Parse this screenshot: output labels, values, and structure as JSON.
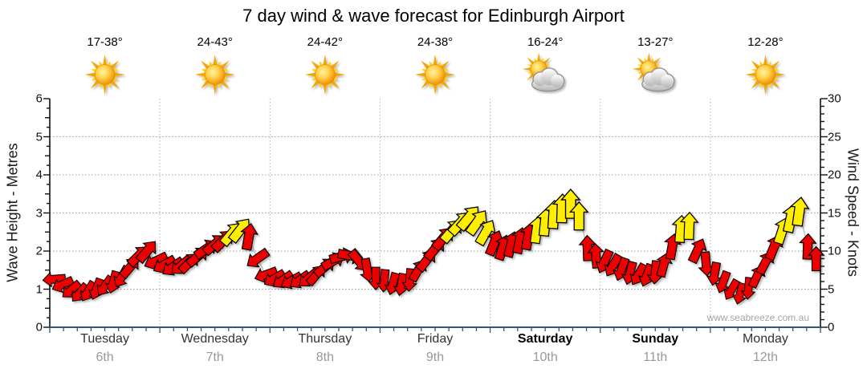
{
  "title": "7 day wind & wave forecast for Edinburgh Airport",
  "watermark": "www.seabreeze.com.au",
  "axes": {
    "left_label": "Wave Height - Metres",
    "right_label": "Wind Speed - Knots",
    "left_ticks": [
      0,
      1,
      2,
      3,
      4,
      5,
      6
    ],
    "right_ticks": [
      0,
      5,
      10,
      15,
      20,
      25,
      30
    ]
  },
  "days": [
    {
      "name": "Tuesday",
      "date": "6th",
      "temp": "17-38°",
      "icon": "sun",
      "bold": false
    },
    {
      "name": "Wednesday",
      "date": "7th",
      "temp": "24-43°",
      "icon": "sun",
      "bold": false
    },
    {
      "name": "Thursday",
      "date": "8th",
      "temp": "24-42°",
      "icon": "sun",
      "bold": false
    },
    {
      "name": "Friday",
      "date": "9th",
      "temp": "24-38°",
      "icon": "sun",
      "bold": false
    },
    {
      "name": "Saturday",
      "date": "10th",
      "temp": "16-24°",
      "icon": "sun-cloud",
      "bold": true
    },
    {
      "name": "Sunday",
      "date": "11th",
      "temp": "13-27°",
      "icon": "sun-cloud",
      "bold": true
    },
    {
      "name": "Monday",
      "date": "12th",
      "temp": "12-28°",
      "icon": "sun",
      "bold": false
    }
  ],
  "chart_data": {
    "type": "wind-arrow-series",
    "title": "7 day wind & wave forecast for Edinburgh Airport",
    "x": "time, 7 days (Tue 6th - Mon 12th), 13 samples per day",
    "y_left_axis": {
      "label": "Wave Height - Metres",
      "range": [
        0,
        6
      ],
      "major_step": 1
    },
    "y_right_axis": {
      "label": "Wind Speed - Knots",
      "range": [
        0,
        30
      ],
      "major_step": 5
    },
    "grid": {
      "horizontal_dotted_at_metres": [
        1,
        2,
        3,
        4,
        5
      ],
      "vertical_dotted_at_day_boundaries": true
    },
    "colors": {
      "low_wind_arrow": "#ec0000",
      "high_wind_arrow": "#ffee00",
      "arrow_outline": "#000000",
      "high_wind_threshold_knots": 12,
      "bottom_axis": "#30587e"
    },
    "arrow_semantics": "each arrow: [wind speed in knots (right axis), direction wind blows toward in degrees (0=N/up, 90=E/right)]",
    "arrows": [
      [
        6.3,
        265
      ],
      [
        5.6,
        245
      ],
      [
        4.9,
        230
      ],
      [
        4.5,
        220
      ],
      [
        4.7,
        210
      ],
      [
        5.0,
        200
      ],
      [
        5.4,
        215
      ],
      [
        5.9,
        195
      ],
      [
        6.6,
        210
      ],
      [
        7.9,
        40
      ],
      [
        9.4,
        45
      ],
      [
        10.0,
        40
      ],
      [
        8.7,
        245
      ],
      [
        8.2,
        240
      ],
      [
        7.9,
        235
      ],
      [
        8.1,
        230
      ],
      [
        8.5,
        45
      ],
      [
        9.3,
        50
      ],
      [
        10.3,
        55
      ],
      [
        10.9,
        50
      ],
      [
        11.4,
        45
      ],
      [
        12.3,
        40
      ],
      [
        12.8,
        38
      ],
      [
        11.9,
        10
      ],
      [
        9.0,
        235
      ],
      [
        6.9,
        250
      ],
      [
        6.4,
        240
      ],
      [
        6.2,
        235
      ],
      [
        6.1,
        240
      ],
      [
        6.2,
        235
      ],
      [
        6.4,
        230
      ],
      [
        6.9,
        40
      ],
      [
        7.9,
        50
      ],
      [
        8.7,
        60
      ],
      [
        9.3,
        75
      ],
      [
        9.4,
        100
      ],
      [
        8.7,
        140
      ],
      [
        7.5,
        170
      ],
      [
        6.4,
        180
      ],
      [
        6.1,
        185
      ],
      [
        5.7,
        195
      ],
      [
        5.6,
        190
      ],
      [
        6.2,
        185
      ],
      [
        7.5,
        30
      ],
      [
        8.8,
        38
      ],
      [
        10.3,
        40
      ],
      [
        11.7,
        40
      ],
      [
        12.7,
        40
      ],
      [
        13.7,
        42
      ],
      [
        14.4,
        40
      ],
      [
        13.8,
        35
      ],
      [
        12.5,
        30
      ],
      [
        11.1,
        22
      ],
      [
        10.5,
        18
      ],
      [
        10.9,
        15
      ],
      [
        11.4,
        12
      ],
      [
        11.9,
        10
      ],
      [
        12.8,
        8
      ],
      [
        13.8,
        6
      ],
      [
        14.8,
        4
      ],
      [
        15.6,
        2
      ],
      [
        16.2,
        0
      ],
      [
        14.6,
        0
      ],
      [
        10.4,
        358
      ],
      [
        9.4,
        355
      ],
      [
        8.6,
        205
      ],
      [
        8.1,
        210
      ],
      [
        7.6,
        200
      ],
      [
        7.1,
        195
      ],
      [
        6.9,
        210
      ],
      [
        6.8,
        200
      ],
      [
        7.2,
        185
      ],
      [
        8.2,
        15
      ],
      [
        10.6,
        10
      ],
      [
        12.9,
        5
      ],
      [
        13.3,
        2
      ],
      [
        10.1,
        25
      ],
      [
        8.3,
        175
      ],
      [
        7.0,
        190
      ],
      [
        5.9,
        200
      ],
      [
        4.9,
        210
      ],
      [
        4.4,
        195
      ],
      [
        5.1,
        185
      ],
      [
        6.7,
        25
      ],
      [
        8.5,
        28
      ],
      [
        10.5,
        22
      ],
      [
        12.7,
        18
      ],
      [
        14.3,
        12
      ],
      [
        15.2,
        8
      ],
      [
        10.6,
        2
      ],
      [
        9.0,
        0
      ]
    ]
  }
}
